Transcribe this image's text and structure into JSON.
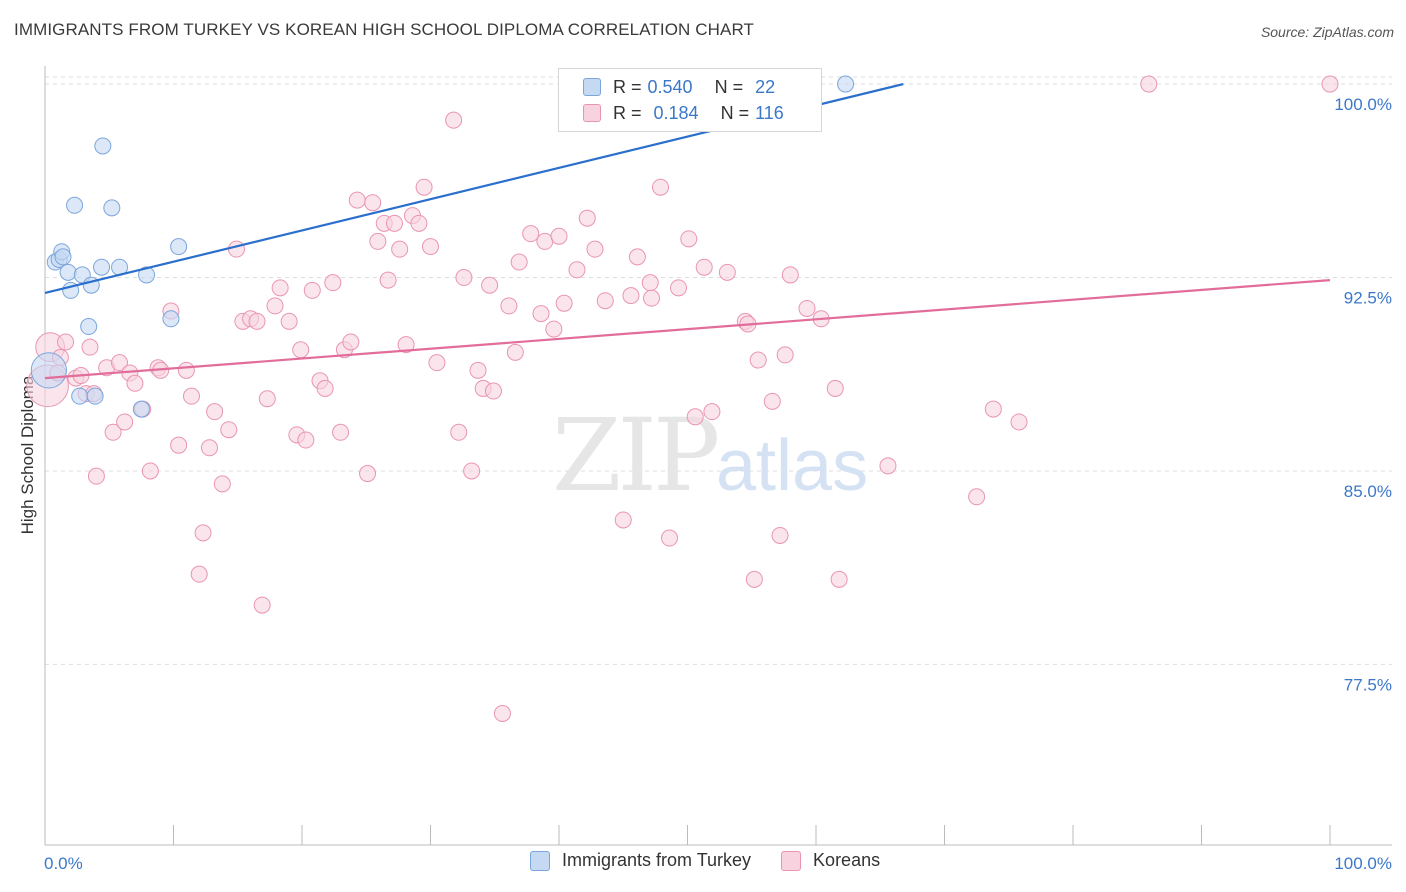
{
  "title": "IMMIGRANTS FROM TURKEY VS KOREAN HIGH SCHOOL DIPLOMA CORRELATION CHART",
  "source": "Source: ZipAtlas.com",
  "watermark": {
    "zip": "ZIP",
    "atlas": "atlas"
  },
  "legend": {
    "rows": [
      {
        "r_label": "R =",
        "r_value": "0.540",
        "n_label": "N =",
        "n_value": "22"
      },
      {
        "r_label": "R =",
        "r_value": "0.184",
        "n_label": "N =",
        "n_value": "116"
      }
    ]
  },
  "bottom_legend": [
    "Immigrants from Turkey",
    "Koreans"
  ],
  "colors": {
    "blue_fill": "#c5d9f3",
    "blue_stroke": "#7aa6dc",
    "blue_line": "#2a6fcc",
    "pink_fill": "#f8d3df",
    "pink_stroke": "#e995b2",
    "pink_line": "#e26d9a",
    "tick_label": "#3b78c9",
    "grid": "#dddddd"
  },
  "chart_data": {
    "type": "scatter",
    "title": "IMMIGRANTS FROM TURKEY VS KOREAN HIGH SCHOOL DIPLOMA CORRELATION CHART",
    "xlabel": "",
    "ylabel": "High School Diploma",
    "xlim": [
      0,
      100
    ],
    "ylim": [
      70.5,
      100.7
    ],
    "x_tick_labels": [
      "0.0%",
      "100.0%"
    ],
    "y_ticks": [
      77.5,
      85.0,
      92.5,
      100.0
    ],
    "y_tick_labels": [
      "77.5%",
      "85.0%",
      "92.5%",
      "100.0%"
    ],
    "grid": "horizontal dashed",
    "series": [
      {
        "name": "Immigrants from Turkey",
        "points": [
          [
            0.3,
            88.9,
            2.2
          ],
          [
            0.8,
            93.1,
            1
          ],
          [
            1.1,
            93.2,
            1
          ],
          [
            1.3,
            93.5,
            1
          ],
          [
            1.4,
            93.3,
            1
          ],
          [
            1.8,
            92.7,
            1
          ],
          [
            2.0,
            92.0,
            1
          ],
          [
            2.3,
            95.3,
            1
          ],
          [
            2.7,
            87.9,
            1
          ],
          [
            2.9,
            92.6,
            1
          ],
          [
            3.4,
            90.6,
            1
          ],
          [
            3.6,
            92.2,
            1
          ],
          [
            3.9,
            87.9,
            1
          ],
          [
            4.4,
            92.9,
            1
          ],
          [
            4.5,
            97.6,
            1
          ],
          [
            5.2,
            95.2,
            1
          ],
          [
            5.8,
            92.9,
            1
          ],
          [
            7.5,
            87.4,
            1
          ],
          [
            7.9,
            92.6,
            1
          ],
          [
            9.8,
            90.9,
            1
          ],
          [
            10.4,
            93.7,
            1
          ],
          [
            62.3,
            100.0,
            1
          ]
        ],
        "trend": {
          "x": [
            0,
            66.8
          ],
          "y": [
            91.9,
            100.0
          ]
        }
      },
      {
        "name": "Koreans",
        "points": [
          [
            0.2,
            88.3,
            2.6
          ],
          [
            0.4,
            89.8,
            1.8
          ],
          [
            1.0,
            88.8,
            1
          ],
          [
            1.2,
            89.4,
            1
          ],
          [
            1.6,
            90.0,
            1
          ],
          [
            2.4,
            88.6,
            1
          ],
          [
            2.8,
            88.7,
            1
          ],
          [
            3.2,
            88.0,
            1
          ],
          [
            3.5,
            89.8,
            1
          ],
          [
            3.8,
            88.0,
            1
          ],
          [
            4.0,
            84.8,
            1
          ],
          [
            4.8,
            89.0,
            1
          ],
          [
            5.3,
            86.5,
            1
          ],
          [
            5.8,
            89.2,
            1
          ],
          [
            6.2,
            86.9,
            1
          ],
          [
            6.6,
            88.8,
            1
          ],
          [
            7.0,
            88.4,
            1
          ],
          [
            7.6,
            87.4,
            1
          ],
          [
            8.2,
            85.0,
            1
          ],
          [
            8.8,
            89.0,
            1
          ],
          [
            9.0,
            88.9,
            1
          ],
          [
            9.8,
            91.2,
            1
          ],
          [
            10.4,
            86.0,
            1
          ],
          [
            11.0,
            88.9,
            1
          ],
          [
            11.4,
            87.9,
            1
          ],
          [
            12.0,
            81.0,
            1
          ],
          [
            12.3,
            82.6,
            1
          ],
          [
            12.8,
            85.9,
            1
          ],
          [
            13.2,
            87.3,
            1
          ],
          [
            13.8,
            84.5,
            1
          ],
          [
            14.3,
            86.6,
            1
          ],
          [
            14.9,
            93.6,
            1
          ],
          [
            15.4,
            90.8,
            1
          ],
          [
            16.0,
            90.9,
            1
          ],
          [
            16.5,
            90.8,
            1
          ],
          [
            16.9,
            79.8,
            1
          ],
          [
            17.3,
            87.8,
            1
          ],
          [
            17.9,
            91.4,
            1
          ],
          [
            18.3,
            92.1,
            1
          ],
          [
            19.0,
            90.8,
            1
          ],
          [
            19.6,
            86.4,
            1
          ],
          [
            19.9,
            89.7,
            1
          ],
          [
            20.3,
            86.2,
            1
          ],
          [
            20.8,
            92.0,
            1
          ],
          [
            21.4,
            88.5,
            1
          ],
          [
            21.8,
            88.2,
            1
          ],
          [
            22.4,
            92.3,
            1
          ],
          [
            23.0,
            86.5,
            1
          ],
          [
            23.3,
            89.7,
            1
          ],
          [
            23.8,
            90.0,
            1
          ],
          [
            24.3,
            95.5,
            1
          ],
          [
            25.1,
            84.9,
            1
          ],
          [
            25.5,
            95.4,
            1
          ],
          [
            25.9,
            93.9,
            1
          ],
          [
            26.4,
            94.6,
            1
          ],
          [
            26.7,
            92.4,
            1
          ],
          [
            27.2,
            94.6,
            1
          ],
          [
            27.6,
            93.6,
            1
          ],
          [
            28.1,
            89.9,
            1
          ],
          [
            28.6,
            94.9,
            1
          ],
          [
            29.1,
            94.6,
            1
          ],
          [
            29.5,
            96.0,
            1
          ],
          [
            30.0,
            93.7,
            1
          ],
          [
            30.5,
            89.2,
            1
          ],
          [
            31.8,
            98.6,
            1
          ],
          [
            32.2,
            86.5,
            1
          ],
          [
            32.6,
            92.5,
            1
          ],
          [
            33.2,
            85.0,
            1
          ],
          [
            33.7,
            88.9,
            1
          ],
          [
            34.1,
            88.2,
            1
          ],
          [
            34.6,
            92.2,
            1
          ],
          [
            34.9,
            88.1,
            1
          ],
          [
            35.6,
            75.6,
            1
          ],
          [
            36.1,
            91.4,
            1
          ],
          [
            36.6,
            89.6,
            1
          ],
          [
            36.9,
            93.1,
            1
          ],
          [
            37.8,
            94.2,
            1
          ],
          [
            38.6,
            91.1,
            1
          ],
          [
            38.9,
            93.9,
            1
          ],
          [
            39.6,
            90.5,
            1
          ],
          [
            40.0,
            94.1,
            1
          ],
          [
            40.4,
            91.5,
            1
          ],
          [
            41.1,
            100.0,
            1
          ],
          [
            41.4,
            92.8,
            1
          ],
          [
            42.2,
            94.8,
            1
          ],
          [
            42.8,
            93.6,
            1
          ],
          [
            43.6,
            91.6,
            1
          ],
          [
            45.0,
            83.1,
            1
          ],
          [
            45.6,
            91.8,
            1
          ],
          [
            46.1,
            93.3,
            1
          ],
          [
            47.1,
            92.3,
            1
          ],
          [
            47.2,
            91.7,
            1
          ],
          [
            47.9,
            96.0,
            1
          ],
          [
            48.6,
            82.4,
            1
          ],
          [
            49.3,
            92.1,
            1
          ],
          [
            50.1,
            94.0,
            1
          ],
          [
            50.6,
            87.1,
            1
          ],
          [
            51.3,
            92.9,
            1
          ],
          [
            51.9,
            87.3,
            1
          ],
          [
            53.1,
            92.7,
            1
          ],
          [
            54.5,
            90.8,
            1
          ],
          [
            54.7,
            90.7,
            1
          ],
          [
            55.2,
            80.8,
            1
          ],
          [
            55.5,
            89.3,
            1
          ],
          [
            56.6,
            87.7,
            1
          ],
          [
            57.2,
            82.5,
            1
          ],
          [
            57.6,
            89.5,
            1
          ],
          [
            58.0,
            92.6,
            1
          ],
          [
            59.3,
            91.3,
            1
          ],
          [
            60.4,
            90.9,
            1
          ],
          [
            61.5,
            88.2,
            1
          ],
          [
            61.8,
            80.8,
            1
          ],
          [
            65.6,
            85.2,
            1
          ],
          [
            72.5,
            84.0,
            1
          ],
          [
            73.8,
            87.4,
            1
          ],
          [
            75.8,
            86.9,
            1
          ],
          [
            85.9,
            100.0,
            1
          ],
          [
            100.0,
            100.0,
            1
          ]
        ],
        "trend": {
          "x": [
            0,
            100
          ],
          "y": [
            88.6,
            92.4
          ]
        }
      }
    ]
  }
}
